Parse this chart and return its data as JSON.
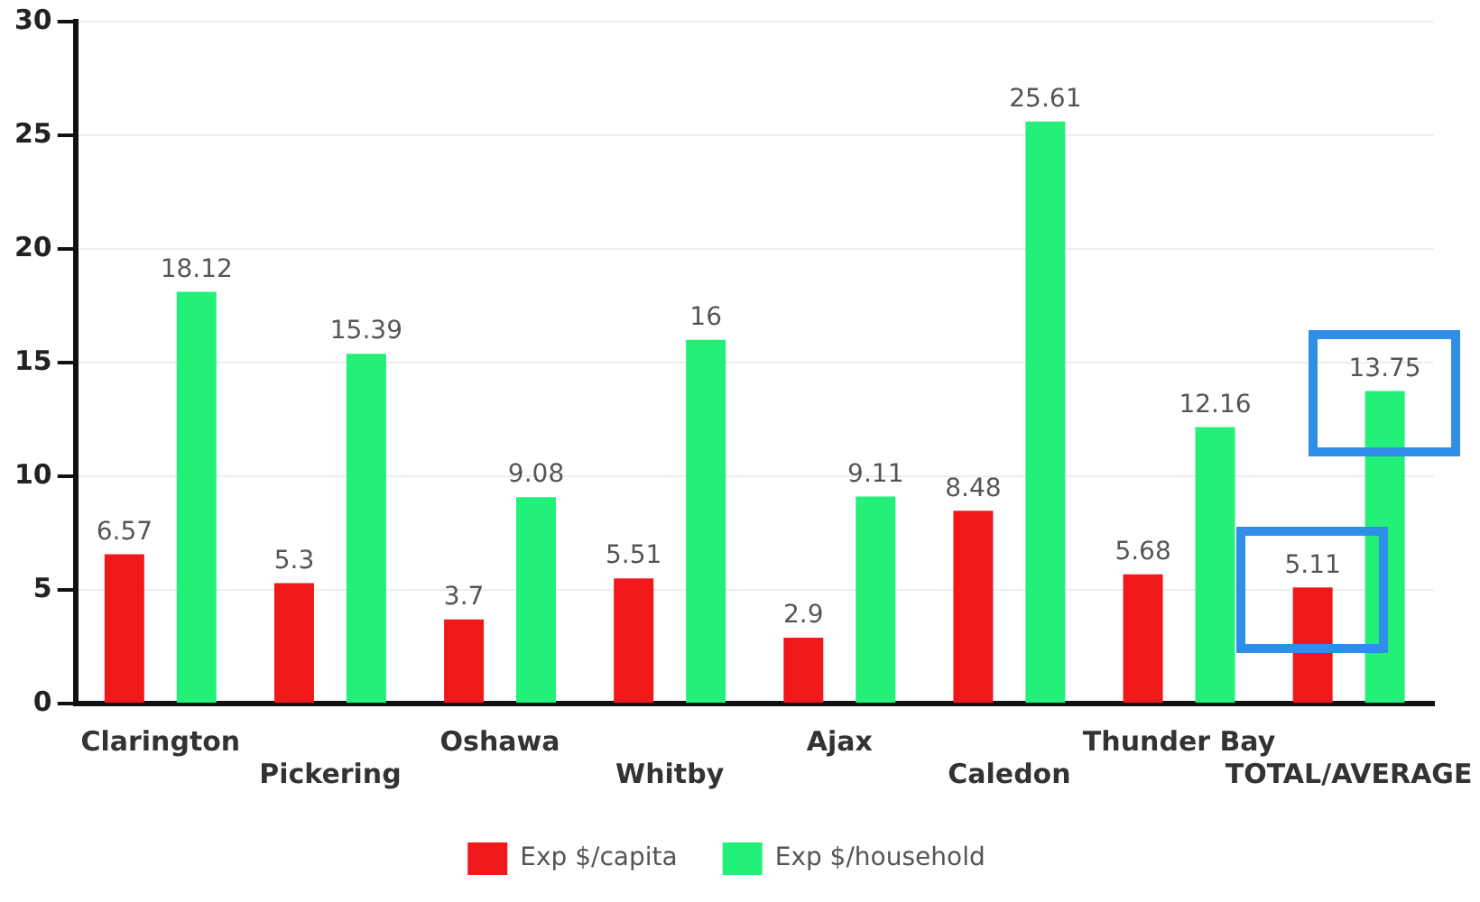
{
  "chart_data": {
    "type": "bar",
    "categories": [
      "Clarington",
      "Pickering",
      "Oshawa",
      "Whitby",
      "Ajax",
      "Caledon",
      "Thunder Bay",
      "TOTAL/AVERAGE"
    ],
    "series": [
      {
        "name": "Exp $/capita",
        "color": "#f01818",
        "values": [
          6.57,
          5.3,
          3.7,
          5.51,
          2.9,
          8.48,
          5.68,
          5.11
        ]
      },
      {
        "name": "Exp $/household",
        "color": "#22f078",
        "values": [
          18.12,
          15.39,
          9.08,
          16,
          9.11,
          25.61,
          12.16,
          13.75
        ]
      }
    ],
    "ylim": [
      0,
      30
    ],
    "yticks": [
      0,
      5,
      10,
      15,
      20,
      25,
      30
    ],
    "grid": "y",
    "legend": "bottom",
    "data_labels": true
  }
}
